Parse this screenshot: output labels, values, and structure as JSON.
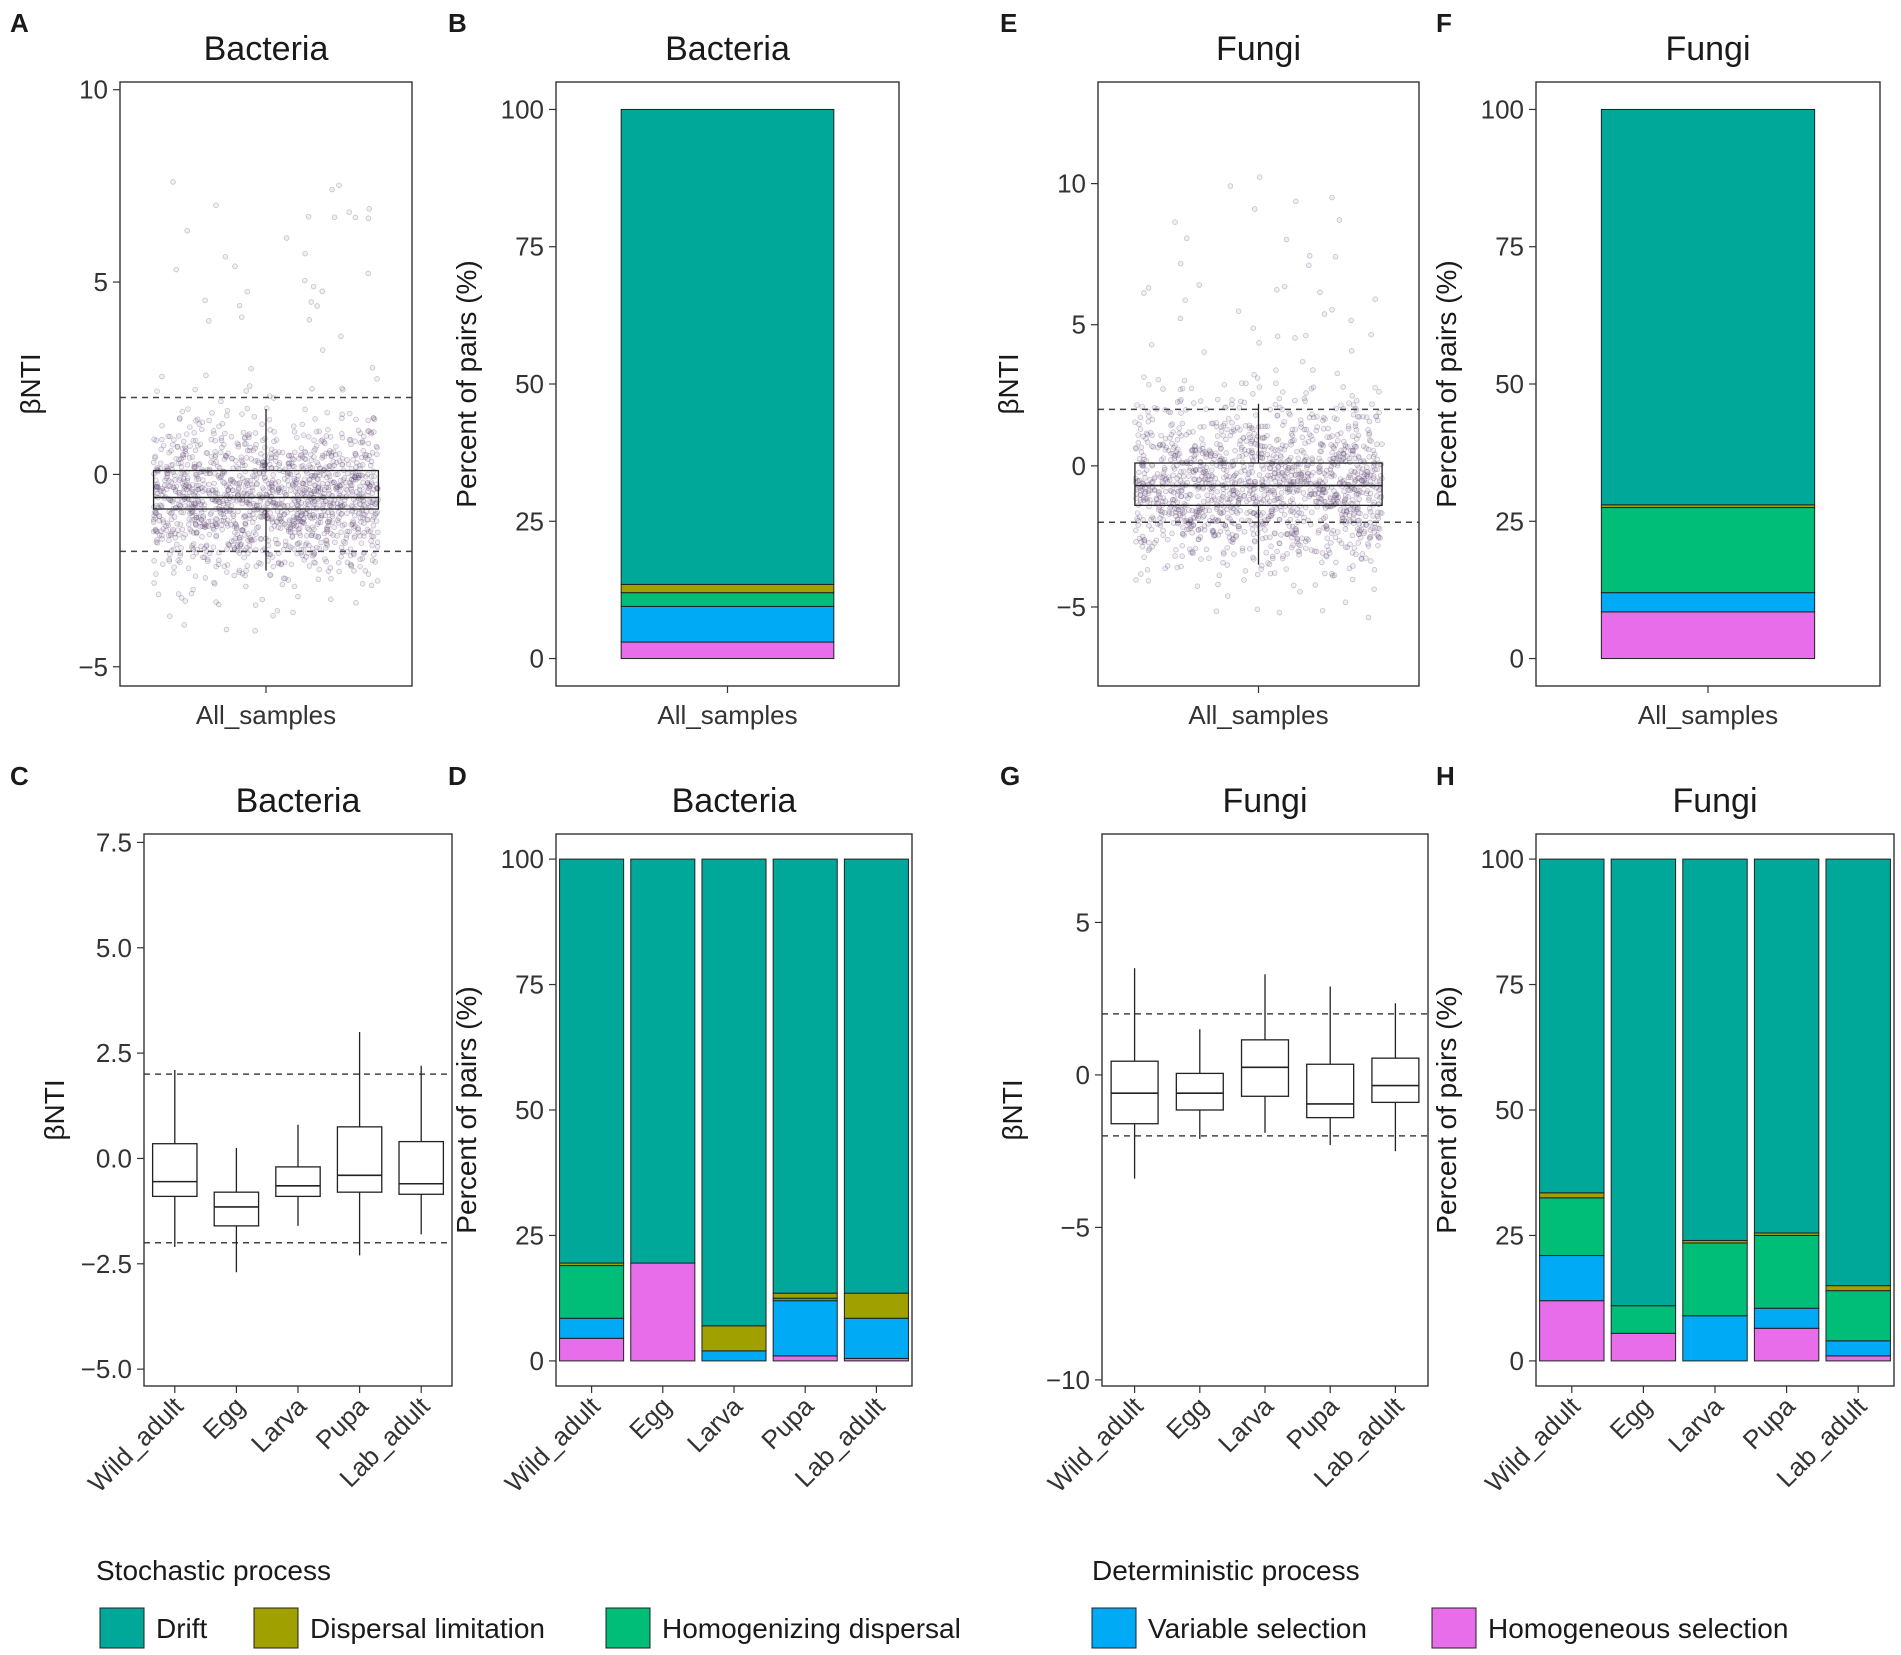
{
  "legend": {
    "stochastic_title": "Stochastic process",
    "deterministic_title": "Deterministic process",
    "items": [
      {
        "name": "Drift",
        "color": "#00A89A"
      },
      {
        "name": "Dispersal limitation",
        "color": "#A0A000"
      },
      {
        "name": "Homogenizing dispersal",
        "color": "#00BE78"
      },
      {
        "name": "Variable selection",
        "color": "#00AAF5"
      },
      {
        "name": "Homogeneous selection",
        "color": "#E86DEB"
      }
    ]
  },
  "chart_data": [
    {
      "panel": "A",
      "type": "box",
      "title": "Bacteria",
      "ylabel": "βNTI",
      "xlabel": "",
      "ylim": [
        -5.5,
        10.2
      ],
      "yticks": [
        10,
        5,
        0,
        -5
      ],
      "ytick_labels": [
        "10",
        "5",
        "0",
        "−5"
      ],
      "hlines": [
        2,
        -2
      ],
      "jitter_points": true,
      "categories": [
        "All_samples"
      ],
      "boxes": [
        {
          "min": -2.5,
          "q1": -0.9,
          "median": -0.6,
          "q3": 0.1,
          "max": 1.7
        }
      ]
    },
    {
      "panel": "B",
      "type": "bar",
      "stacked": true,
      "title": "Bacteria",
      "ylabel": "Percent of pairs (%)",
      "xlabel": "",
      "ylim": [
        -5,
        105
      ],
      "yticks": [
        0,
        25,
        50,
        75,
        100
      ],
      "categories": [
        "All_samples"
      ],
      "series": [
        {
          "name": "Homogeneous selection",
          "values": [
            3
          ]
        },
        {
          "name": "Variable selection",
          "values": [
            6.5
          ]
        },
        {
          "name": "Homogenizing dispersal",
          "values": [
            2.5
          ]
        },
        {
          "name": "Dispersal limitation",
          "values": [
            1.5
          ]
        },
        {
          "name": "Drift",
          "values": [
            86.5
          ]
        }
      ]
    },
    {
      "panel": "E",
      "type": "box",
      "title": "Fungi",
      "ylabel": "βNTI",
      "xlabel": "",
      "ylim": [
        -7.8,
        13.6
      ],
      "yticks": [
        10,
        5,
        0,
        -5
      ],
      "ytick_labels": [
        "10",
        "5",
        "0",
        "−5"
      ],
      "hlines": [
        2,
        -2
      ],
      "jitter_points": true,
      "categories": [
        "All_samples"
      ],
      "boxes": [
        {
          "min": -3.5,
          "q1": -1.4,
          "median": -0.7,
          "q3": 0.1,
          "max": 2.2
        }
      ]
    },
    {
      "panel": "F",
      "type": "bar",
      "stacked": true,
      "title": "Fungi",
      "ylabel": "Percent of pairs (%)",
      "xlabel": "",
      "ylim": [
        -5,
        105
      ],
      "yticks": [
        0,
        25,
        50,
        75,
        100
      ],
      "categories": [
        "All_samples"
      ],
      "series": [
        {
          "name": "Homogeneous selection",
          "values": [
            8.5
          ]
        },
        {
          "name": "Variable selection",
          "values": [
            3.5
          ]
        },
        {
          "name": "Homogenizing dispersal",
          "values": [
            15.5
          ]
        },
        {
          "name": "Dispersal limitation",
          "values": [
            0.5
          ]
        },
        {
          "name": "Drift",
          "values": [
            72
          ]
        }
      ]
    },
    {
      "panel": "C",
      "type": "box",
      "title": "Bacteria",
      "ylabel": "βNTI",
      "xlabel": "",
      "ylim": [
        -5.4,
        7.7
      ],
      "yticks": [
        7.5,
        5.0,
        2.5,
        0.0,
        -2.5,
        -5.0
      ],
      "ytick_labels": [
        "7.5",
        "5.0",
        "2.5",
        "0.0",
        "−2.5",
        "−5.0"
      ],
      "hlines": [
        2,
        -2
      ],
      "jitter_points": false,
      "categories": [
        "Wild_adult",
        "Egg",
        "Larva",
        "Pupa",
        "Lab_adult"
      ],
      "boxes": [
        {
          "min": -2.1,
          "q1": -0.9,
          "median": -0.55,
          "q3": 0.35,
          "max": 2.1
        },
        {
          "min": -2.7,
          "q1": -1.6,
          "median": -1.15,
          "q3": -0.8,
          "max": 0.25
        },
        {
          "min": -1.6,
          "q1": -0.9,
          "median": -0.65,
          "q3": -0.2,
          "max": 0.8
        },
        {
          "min": -2.3,
          "q1": -0.8,
          "median": -0.4,
          "q3": 0.75,
          "max": 3.0
        },
        {
          "min": -1.8,
          "q1": -0.85,
          "median": -0.6,
          "q3": 0.4,
          "max": 2.2
        }
      ]
    },
    {
      "panel": "D",
      "type": "bar",
      "stacked": true,
      "title": "Bacteria",
      "ylabel": "Percent of pairs (%)",
      "xlabel": "",
      "ylim": [
        -5,
        105
      ],
      "yticks": [
        0,
        25,
        50,
        75,
        100
      ],
      "categories": [
        "Wild_adult",
        "Egg",
        "Larva",
        "Pupa",
        "Lab_adult"
      ],
      "series": [
        {
          "name": "Homogeneous selection",
          "values": [
            4.5,
            19.5,
            0,
            1,
            0.5
          ]
        },
        {
          "name": "Variable selection",
          "values": [
            4,
            0,
            2,
            11,
            8
          ]
        },
        {
          "name": "Homogenizing dispersal",
          "values": [
            10.5,
            0,
            0,
            0.5,
            0
          ]
        },
        {
          "name": "Dispersal limitation",
          "values": [
            0.5,
            0,
            5,
            1,
            5
          ]
        },
        {
          "name": "Drift",
          "values": [
            80.5,
            80.5,
            93,
            86.5,
            86.5
          ]
        }
      ]
    },
    {
      "panel": "G",
      "type": "box",
      "title": "Fungi",
      "ylabel": "βNTI",
      "xlabel": "",
      "ylim": [
        -10.2,
        7.9
      ],
      "yticks": [
        5,
        0,
        -5,
        -10
      ],
      "ytick_labels": [
        "5",
        "0",
        "−5",
        "−10"
      ],
      "hlines": [
        2,
        -2
      ],
      "jitter_points": false,
      "categories": [
        "Wild_adult",
        "Egg",
        "Larva",
        "Pupa",
        "Lab_adult"
      ],
      "boxes": [
        {
          "min": -3.4,
          "q1": -1.6,
          "median": -0.6,
          "q3": 0.45,
          "max": 3.5
        },
        {
          "min": -2.1,
          "q1": -1.15,
          "median": -0.6,
          "q3": 0.05,
          "max": 1.5
        },
        {
          "min": -1.9,
          "q1": -0.7,
          "median": 0.25,
          "q3": 1.15,
          "max": 3.3
        },
        {
          "min": -2.3,
          "q1": -1.4,
          "median": -0.95,
          "q3": 0.35,
          "max": 2.9
        },
        {
          "min": -2.5,
          "q1": -0.9,
          "median": -0.35,
          "q3": 0.55,
          "max": 2.35
        }
      ]
    },
    {
      "panel": "H",
      "type": "bar",
      "stacked": true,
      "title": "Fungi",
      "ylabel": "Percent of pairs (%)",
      "xlabel": "",
      "ylim": [
        -5,
        105
      ],
      "yticks": [
        0,
        25,
        50,
        75,
        100
      ],
      "categories": [
        "Wild_adult",
        "Egg",
        "Larva",
        "Pupa",
        "Lab_adult"
      ],
      "series": [
        {
          "name": "Homogeneous selection",
          "values": [
            12,
            5.5,
            0,
            6.5,
            1
          ]
        },
        {
          "name": "Variable selection",
          "values": [
            9,
            0,
            9,
            4,
            3
          ]
        },
        {
          "name": "Homogenizing dispersal",
          "values": [
            11.5,
            5.5,
            14.5,
            14.5,
            10
          ]
        },
        {
          "name": "Dispersal limitation",
          "values": [
            1,
            0,
            0.5,
            0.5,
            1
          ]
        },
        {
          "name": "Drift",
          "values": [
            66.5,
            89,
            76,
            74.5,
            85
          ]
        }
      ]
    }
  ]
}
